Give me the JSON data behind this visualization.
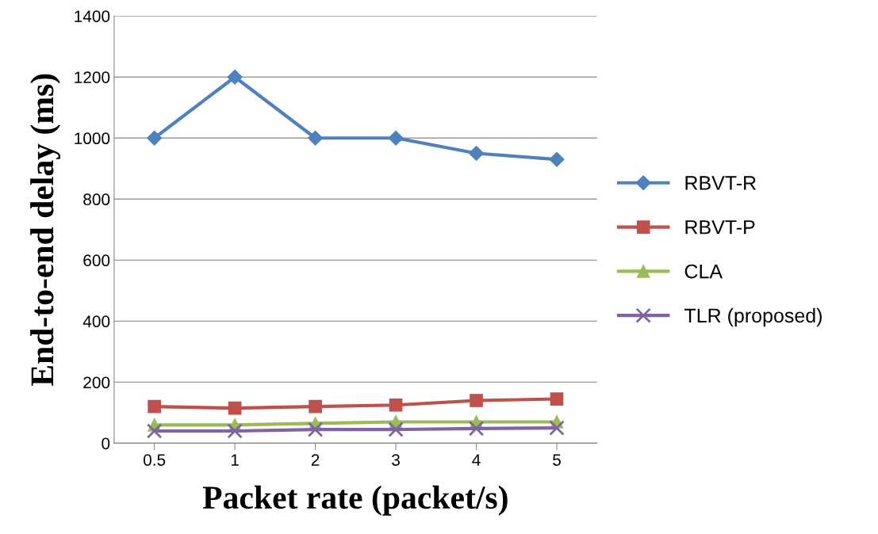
{
  "chart_data": {
    "type": "line",
    "xlabel": "Packet rate (packet/s)",
    "ylabel": "End-to-end delay (ms)",
    "categories": [
      "0.5",
      "1",
      "2",
      "3",
      "4",
      "5"
    ],
    "series": [
      {
        "name": "RBVT-R",
        "color": "#4f81bd",
        "marker": "diamond",
        "values": [
          1000,
          1200,
          1000,
          1000,
          950,
          930
        ]
      },
      {
        "name": "RBVT-P",
        "color": "#c0504d",
        "marker": "square",
        "values": [
          120,
          115,
          120,
          125,
          140,
          145
        ]
      },
      {
        "name": "CLA",
        "color": "#9bbb59",
        "marker": "triangle",
        "values": [
          60,
          60,
          65,
          70,
          70,
          70
        ]
      },
      {
        "name": "TLR (proposed)",
        "color": "#8064a2",
        "marker": "cross",
        "values": [
          40,
          40,
          45,
          45,
          48,
          50
        ]
      }
    ],
    "ylim": [
      0,
      1400
    ],
    "yticks": [
      0,
      200,
      400,
      600,
      800,
      1000,
      1200,
      1400
    ],
    "grid": "y",
    "legend": "right",
    "line_style": "solid"
  }
}
